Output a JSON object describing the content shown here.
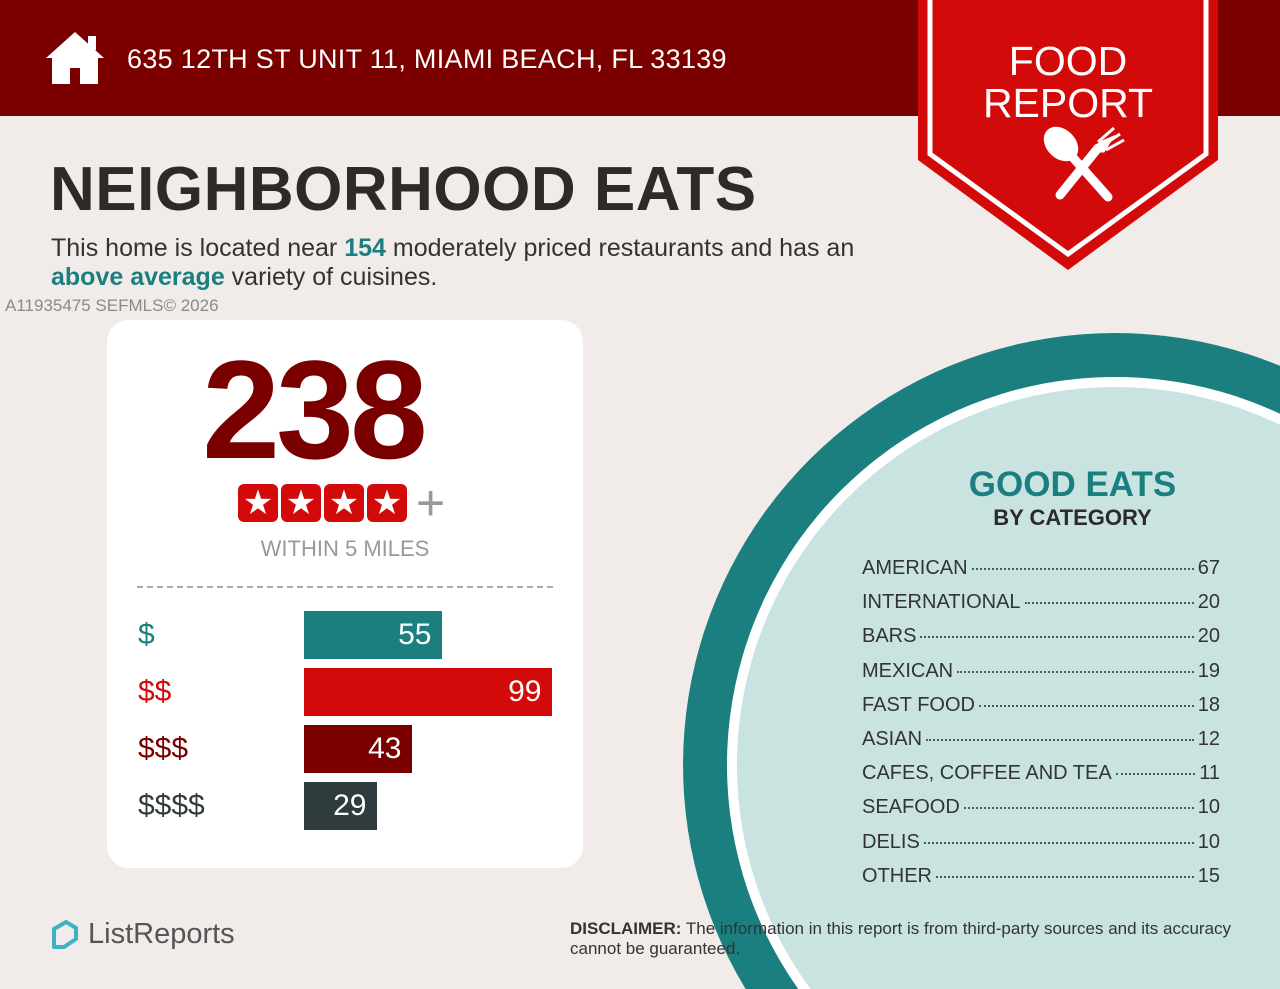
{
  "header": {
    "address": "635 12TH ST UNIT 11, MIAMI BEACH, FL 33139",
    "badge_line1": "FOOD",
    "badge_line2": "REPORT"
  },
  "title": "NEIGHBORHOOD EATS",
  "intro": {
    "t1": "This home is located near ",
    "count": "154",
    "t2": " moderately priced restaurants and has an ",
    "variety": "above average",
    "t3": " variety of cuisines."
  },
  "summary": {
    "total": "238",
    "stars": 4,
    "plus": "+",
    "within": "WITHIN 5 MILES"
  },
  "watermark": "A11935475  SEFMLS© 2026",
  "colors": {
    "teal": "#1b7f80",
    "red": "#d20a0a",
    "dark_red": "#7a0000",
    "gray": "#2f3b3c"
  },
  "chart_data": {
    "type": "bar",
    "orientation": "horizontal",
    "categories": [
      "$",
      "$$",
      "$$$",
      "$$$$"
    ],
    "values": [
      55,
      99,
      43,
      29
    ]
  },
  "good_eats": {
    "title": "GOOD EATS",
    "subtitle": "BY CATEGORY",
    "items": [
      {
        "name": "AMERICAN",
        "count": "67"
      },
      {
        "name": "INTERNATIONAL",
        "count": "20"
      },
      {
        "name": "BARS",
        "count": "20"
      },
      {
        "name": "MEXICAN",
        "count": "19"
      },
      {
        "name": "FAST FOOD",
        "count": "18"
      },
      {
        "name": "ASIAN",
        "count": "12"
      },
      {
        "name": "CAFES, COFFEE AND TEA",
        "count": "11"
      },
      {
        "name": "SEAFOOD",
        "count": "10"
      },
      {
        "name": "DELIS",
        "count": "10"
      },
      {
        "name": "OTHER",
        "count": "15"
      }
    ]
  },
  "footer": {
    "logo": "ListReports",
    "disclaimer_label": "DISCLAIMER:",
    "disclaimer": " The information in this report is from third-party sources and its accuracy cannot be guaranteed."
  }
}
